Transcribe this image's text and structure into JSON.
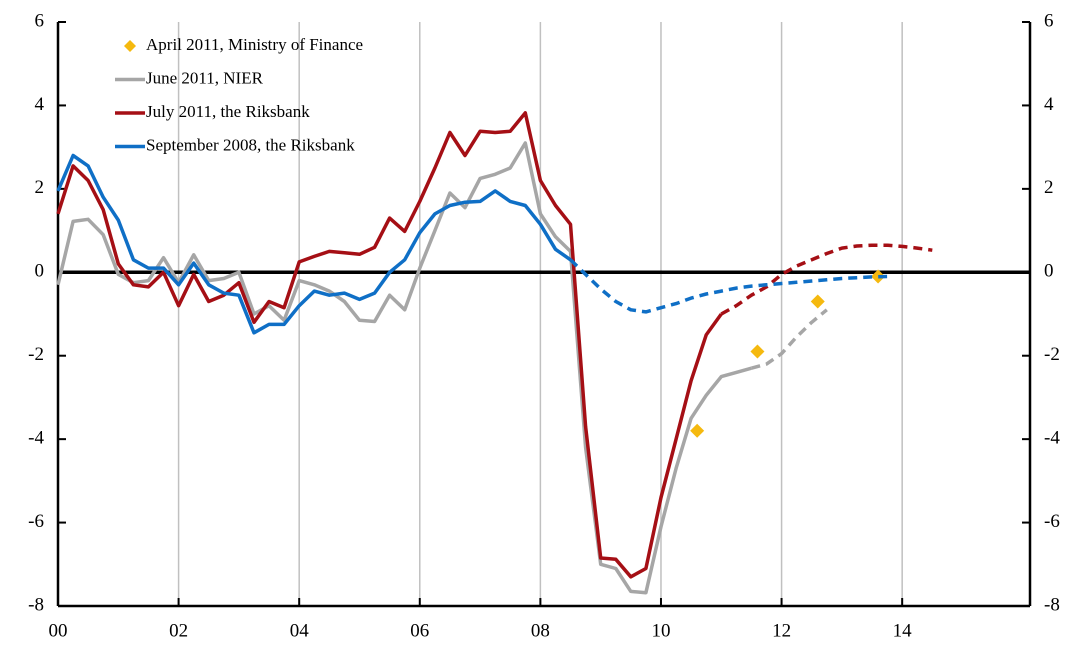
{
  "chart_data": {
    "type": "line",
    "x": [
      0,
      0.25,
      0.5,
      0.75,
      1,
      1.25,
      1.5,
      1.75,
      2,
      2.25,
      2.5,
      2.75,
      3,
      3.25,
      3.5,
      3.75,
      4,
      4.25,
      4.5,
      4.75,
      5,
      5.25,
      5.5,
      5.75,
      6,
      6.25,
      6.5,
      6.75,
      7,
      7.25,
      7.5,
      7.75,
      8,
      8.25,
      8.5,
      8.75,
      9,
      9.25,
      9.5,
      9.75,
      10,
      10.25,
      10.5,
      10.75,
      11,
      11.25,
      11.5,
      11.75,
      12,
      12.25,
      12.5,
      12.75,
      13,
      13.25,
      13.5,
      13.75,
      14,
      14.25,
      14.5
    ],
    "series": [
      {
        "name": "April 2011, Ministry of Finance",
        "type": "scatter",
        "marker": "diamond",
        "color": "#f5b90f",
        "x": [
          10.6,
          11.6,
          12.6,
          13.6
        ],
        "values": [
          -3.8,
          -1.9,
          -0.7,
          -0.1
        ]
      },
      {
        "name": "June 2011, NIER",
        "type": "line",
        "color": "#a6a6a6",
        "dash_from": 11.5,
        "values": [
          -0.3,
          1.22,
          1.27,
          0.9,
          -0.05,
          -0.25,
          -0.2,
          0.35,
          -0.25,
          0.42,
          -0.2,
          -0.15,
          0.0,
          -1.0,
          -0.8,
          -1.15,
          -0.2,
          -0.3,
          -0.45,
          -0.7,
          -1.15,
          -1.18,
          -0.55,
          -0.9,
          0.1,
          1.0,
          1.9,
          1.55,
          2.25,
          2.35,
          2.5,
          3.1,
          1.4,
          0.85,
          0.5,
          -4.2,
          -7.0,
          -7.1,
          -7.65,
          -7.68,
          -6.1,
          -4.7,
          -3.5,
          -2.95,
          -2.5,
          -2.4,
          -2.3,
          -2.2,
          -1.95,
          -1.55,
          -1.2,
          -0.9,
          null,
          null,
          null,
          null,
          null,
          null,
          null
        ]
      },
      {
        "name": "July 2011, the Riksbank",
        "type": "line",
        "color": "#a50f15",
        "dash_from": 11.0,
        "values": [
          1.4,
          2.55,
          2.2,
          1.5,
          0.2,
          -0.3,
          -0.35,
          0.0,
          -0.8,
          -0.05,
          -0.7,
          -0.55,
          -0.25,
          -1.2,
          -0.7,
          -0.85,
          0.25,
          0.38,
          0.5,
          0.47,
          0.43,
          0.6,
          1.3,
          0.98,
          1.7,
          2.5,
          3.35,
          2.8,
          3.38,
          3.35,
          3.38,
          3.82,
          2.2,
          1.6,
          1.15,
          -3.7,
          -6.85,
          -6.88,
          -7.3,
          -7.1,
          -5.4,
          -4.0,
          -2.6,
          -1.5,
          -1.0,
          -0.8,
          -0.55,
          -0.35,
          -0.05,
          0.15,
          0.3,
          0.45,
          0.58,
          0.63,
          0.65,
          0.65,
          0.62,
          0.58,
          0.53
        ]
      },
      {
        "name": "September 2008, the Riksbank",
        "type": "line",
        "color": "#0f6fc6",
        "dash_from": 8.5,
        "values": [
          1.95,
          2.8,
          2.55,
          1.8,
          1.25,
          0.3,
          0.1,
          0.1,
          -0.3,
          0.22,
          -0.3,
          -0.5,
          -0.55,
          -1.45,
          -1.25,
          -1.25,
          -0.8,
          -0.45,
          -0.55,
          -0.5,
          -0.65,
          -0.5,
          0.0,
          0.3,
          0.95,
          1.4,
          1.6,
          1.68,
          1.7,
          1.95,
          1.7,
          1.6,
          1.15,
          0.55,
          0.3,
          -0.05,
          -0.4,
          -0.7,
          -0.9,
          -0.95,
          -0.85,
          -0.75,
          -0.62,
          -0.52,
          -0.45,
          -0.38,
          -0.33,
          -0.3,
          -0.27,
          -0.24,
          -0.21,
          -0.18,
          -0.15,
          -0.13,
          -0.11,
          -0.1,
          null,
          null,
          null
        ]
      }
    ],
    "xlim": [
      0,
      16.12
    ],
    "xticks": [
      {
        "value": 0,
        "label": "00"
      },
      {
        "value": 2,
        "label": "02"
      },
      {
        "value": 4,
        "label": "04"
      },
      {
        "value": 6,
        "label": "06"
      },
      {
        "value": 8,
        "label": "08"
      },
      10,
      12,
      14
    ],
    "ylim": [
      -8,
      6
    ],
    "yticks": [
      -8,
      -6,
      -4,
      -2,
      0,
      2,
      4,
      6
    ],
    "y2lim": [
      -8,
      6
    ],
    "y2ticks": [
      -8,
      -6,
      -4,
      -2,
      0,
      2,
      4,
      6
    ],
    "grid": true,
    "legend": "top-left"
  }
}
